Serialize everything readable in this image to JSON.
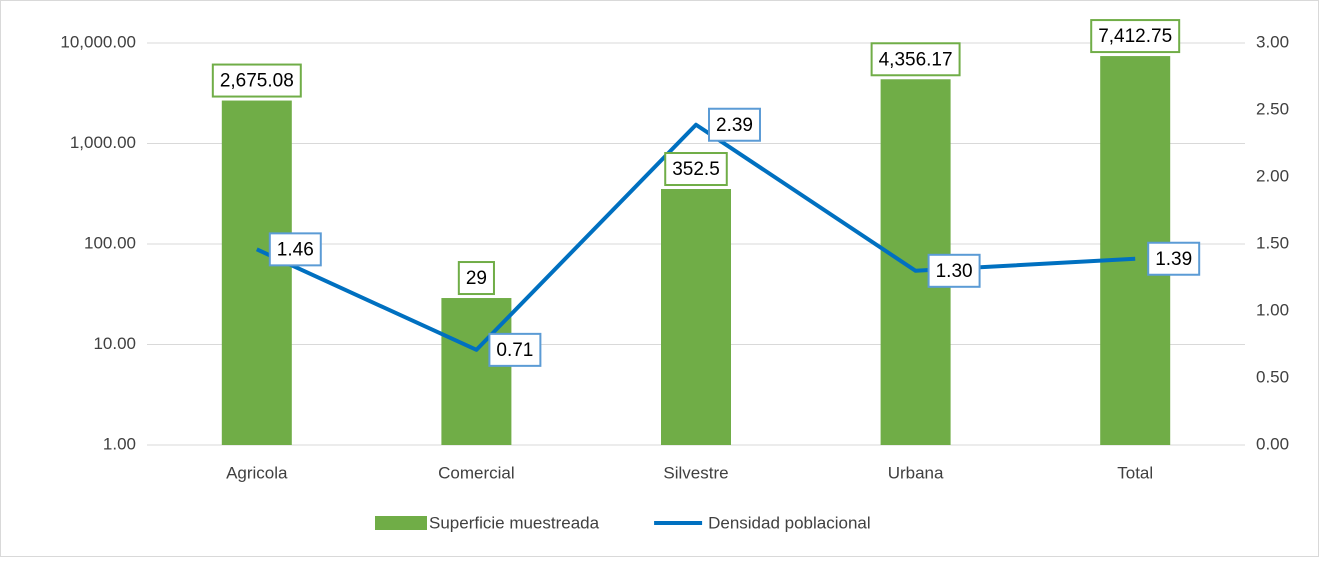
{
  "chart_data": {
    "type": "bar-line",
    "categories": [
      "Agricola",
      "Comercial",
      "Silvestre",
      "Urbana",
      "Total"
    ],
    "series": [
      {
        "name": "Superficie muestreada",
        "type": "bar",
        "color": "#70ad47",
        "values": [
          2675.08,
          29,
          352.5,
          4356.17,
          7412.75
        ],
        "value_labels": [
          "2,675.08",
          "29",
          "352.5",
          "4,356.17",
          "7,412.75"
        ]
      },
      {
        "name": "Densidad poblacional",
        "type": "line",
        "axis": "y2",
        "color": "#0070c0",
        "values": [
          1.46,
          0.71,
          2.39,
          1.3,
          1.39
        ],
        "value_labels": [
          "1.46",
          "0.71",
          "2.39",
          "1.30",
          "1.39"
        ]
      }
    ],
    "ylim": [
      1,
      10000
    ],
    "ylog": true,
    "yticks": [
      {
        "value": 1,
        "label": "1.00"
      },
      {
        "value": 10,
        "label": "10.00"
      },
      {
        "value": 100,
        "label": "100.00"
      },
      {
        "value": 1000,
        "label": "1,000.00"
      },
      {
        "value": 10000,
        "label": "10,000.00"
      }
    ],
    "y2lim": [
      0,
      3
    ],
    "y2ticks": [
      {
        "value": 0,
        "label": "0.00"
      },
      {
        "value": 0.5,
        "label": "0.50"
      },
      {
        "value": 1,
        "label": "1.00"
      },
      {
        "value": 1.5,
        "label": "1.50"
      },
      {
        "value": 2,
        "label": "2.00"
      },
      {
        "value": 2.5,
        "label": "2.50"
      },
      {
        "value": 3,
        "label": "3.00"
      }
    ],
    "grid": true,
    "legend": "bottom"
  }
}
